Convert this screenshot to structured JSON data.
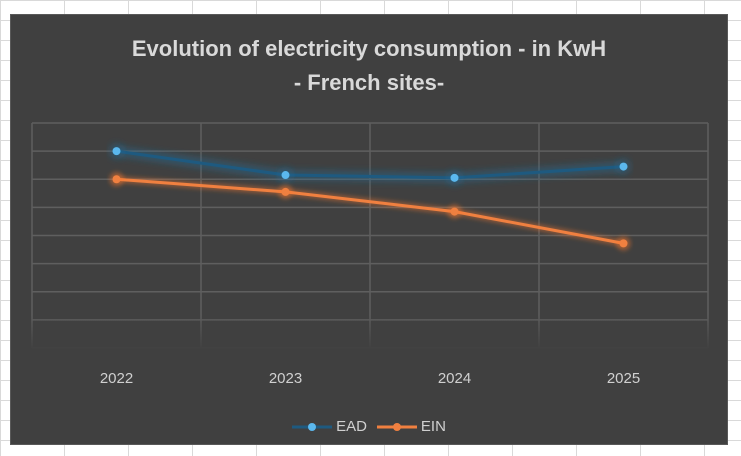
{
  "chart_data": {
    "type": "line",
    "title": "Evolution of electricity consumption - in KwH",
    "subtitle": "- French sites-",
    "categories": [
      "2022",
      "2023",
      "2024",
      "2025"
    ],
    "series": [
      {
        "name": "EAD",
        "color": "#5bb8ee",
        "glow": "#1f6e9c",
        "values": [
          4.0,
          3.15,
          3.05,
          3.45
        ]
      },
      {
        "name": "EIN",
        "color": "#f08040",
        "glow": "#ff7a2a",
        "values": [
          3.0,
          2.55,
          1.85,
          0.72
        ]
      }
    ],
    "ylim": [
      -3,
      5
    ],
    "xlabel": "",
    "ylabel": "",
    "grid": true,
    "legend": "bottom"
  }
}
